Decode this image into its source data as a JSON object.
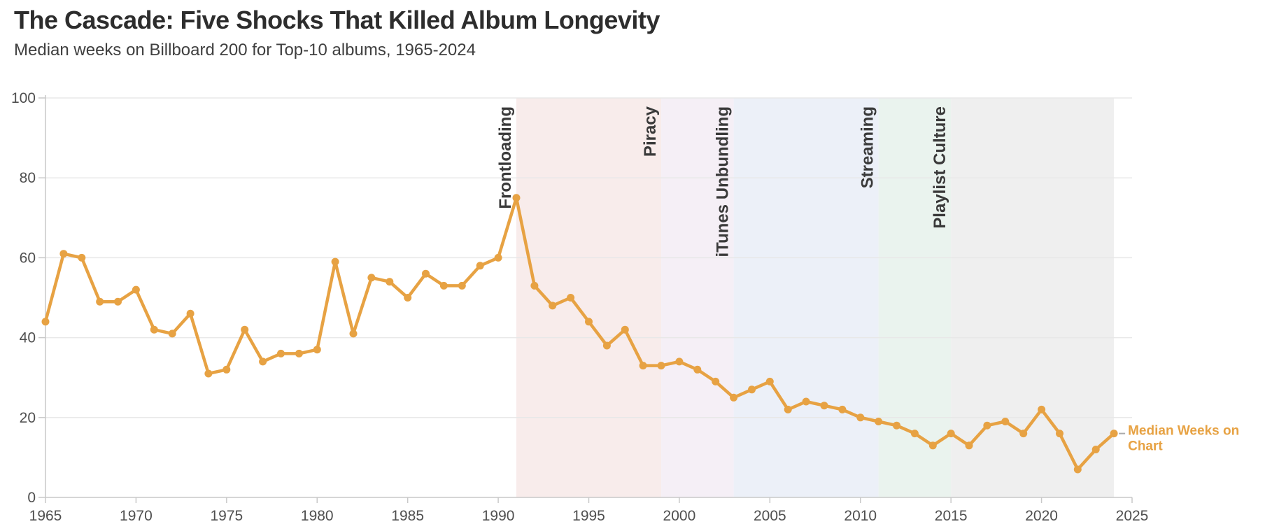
{
  "header": {
    "title": "The Cascade: Five Shocks That Killed Album Longevity",
    "subtitle": "Median weeks on Billboard 200 for Top-10 albums, 1965-2024"
  },
  "colors": {
    "background": "#FFFFFF",
    "line": "#E7A243",
    "marker": "#E7A243",
    "grid": "#E8E8E8",
    "axis": "#C9C9C9",
    "tick_label": "#4F4F4F",
    "title": "#2D2D2D",
    "subtitle": "#3F3F3F",
    "annotation_text": "#3A3A3A",
    "series_label": "#E7A243",
    "legend_connector": "#AAAAAA"
  },
  "chart_data": {
    "type": "line",
    "title": "The Cascade: Five Shocks That Killed Album Longevity",
    "subtitle": "Median weeks on Billboard 200 for Top-10 albums, 1965-2024",
    "xlabel": "",
    "ylabel": "",
    "xlim": [
      1965,
      2025
    ],
    "ylim": [
      0,
      100
    ],
    "xticks": [
      1965,
      1970,
      1975,
      1980,
      1985,
      1990,
      1995,
      2000,
      2005,
      2010,
      2015,
      2020,
      2025
    ],
    "yticks": [
      0,
      20,
      40,
      60,
      80,
      100
    ],
    "grid": "horizontal",
    "legend_position": "right-of-last-point",
    "x": [
      1965,
      1966,
      1967,
      1968,
      1969,
      1970,
      1971,
      1972,
      1973,
      1974,
      1975,
      1976,
      1977,
      1978,
      1979,
      1980,
      1981,
      1982,
      1983,
      1984,
      1985,
      1986,
      1987,
      1988,
      1989,
      1990,
      1991,
      1992,
      1993,
      1994,
      1995,
      1996,
      1997,
      1998,
      1999,
      2000,
      2001,
      2002,
      2003,
      2004,
      2005,
      2006,
      2007,
      2008,
      2009,
      2010,
      2011,
      2012,
      2013,
      2014,
      2015,
      2016,
      2017,
      2018,
      2019,
      2020,
      2021,
      2022,
      2023,
      2024
    ],
    "series": [
      {
        "name": "Median Weeks on Chart",
        "values": [
          44,
          61,
          60,
          49,
          49,
          52,
          42,
          41,
          46,
          31,
          32,
          42,
          34,
          36,
          36,
          37,
          59,
          41,
          55,
          54,
          50,
          56,
          53,
          53,
          58,
          60,
          75,
          53,
          48,
          50,
          44,
          38,
          42,
          33,
          33,
          34,
          32,
          29,
          25,
          27,
          29,
          22,
          24,
          23,
          22,
          20,
          19,
          18,
          16,
          13,
          16,
          13,
          18,
          19,
          16,
          22,
          16,
          7,
          12,
          16
        ]
      }
    ],
    "series_label_lines": [
      "Median Weeks on",
      "Chart"
    ],
    "shock_bands": [
      {
        "label": "Frontloading",
        "start": 1991,
        "end": 1999,
        "fill": "#F8ECEB"
      },
      {
        "label": "Piracy",
        "start": 1999,
        "end": 2003,
        "fill": "#F5EFF6"
      },
      {
        "label": "iTunes Unbundling",
        "start": 2003,
        "end": 2011,
        "fill": "#ECF0F8"
      },
      {
        "label": "Streaming",
        "start": 2011,
        "end": 2015,
        "fill": "#EAF3EE"
      },
      {
        "label": "Playlist Culture",
        "start": 2015,
        "end": 2024,
        "fill": "#EFEFEF"
      }
    ]
  }
}
